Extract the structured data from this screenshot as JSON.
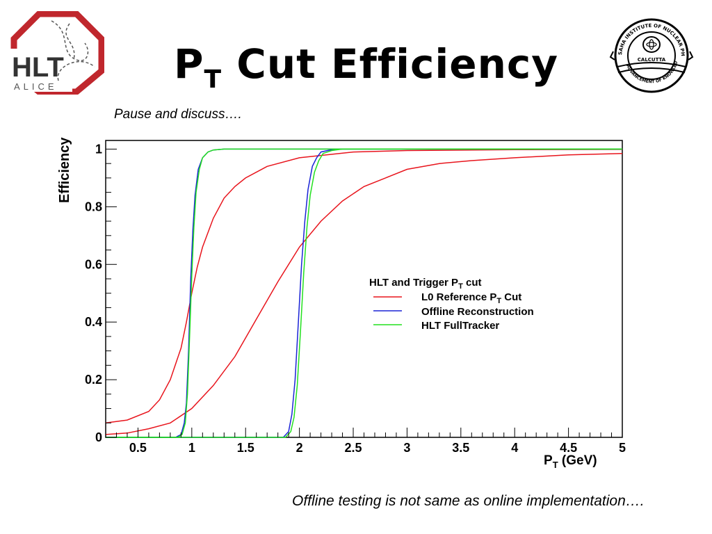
{
  "slide": {
    "title_main": "P",
    "title_sub": "T",
    "title_rest": " Cut Efficiency",
    "caption_top": "Pause and discuss….",
    "caption_bottom": "Offline testing is not same as online implementation…."
  },
  "logos": {
    "left": {
      "text_main": "HLT",
      "text_sub": "ALICE",
      "color": "#c0272d"
    },
    "right": {
      "ring_top": "SAHA INSTITUTE OF NUCLEAR PHYSICS",
      "center": "CALCUTTA",
      "ring_bottom": "ADVANCEMENT OF KNOWLEDGE"
    }
  },
  "chart_data": {
    "type": "line",
    "title": "",
    "xlabel_main": "P",
    "xlabel_sub": "T",
    "xlabel_rest": " (GeV)",
    "ylabel": "Efficiency",
    "xlim": [
      0.2,
      5.0
    ],
    "ylim": [
      0,
      1.03
    ],
    "xticks": [
      "0.5",
      "1",
      "1.5",
      "2",
      "2.5",
      "3",
      "3.5",
      "4",
      "4.5",
      "5"
    ],
    "xtick_values": [
      0.5,
      1,
      1.5,
      2,
      2.5,
      3,
      3.5,
      4,
      4.5,
      5
    ],
    "yticks": [
      "0",
      "0.2",
      "0.4",
      "0.6",
      "0.8",
      "1"
    ],
    "ytick_values": [
      0,
      0.2,
      0.4,
      0.6,
      0.8,
      1
    ],
    "grid": false,
    "legend": {
      "title_main": "HLT and Trigger P",
      "title_sub": "T",
      "title_rest": " cut",
      "placement": "center-right"
    },
    "series": [
      {
        "name_main": "L0 Reference P",
        "name_sub": "T",
        "name_rest": " Cut",
        "color": "#e8141c",
        "curves": [
          {
            "x": [
              0.2,
              0.4,
              0.6,
              0.7,
              0.8,
              0.9,
              0.95,
              1.0,
              1.05,
              1.1,
              1.2,
              1.3,
              1.4,
              1.5,
              1.7,
              2.0,
              2.5,
              3.0,
              4.0,
              5.0
            ],
            "y": [
              0.05,
              0.06,
              0.09,
              0.13,
              0.2,
              0.31,
              0.4,
              0.5,
              0.59,
              0.66,
              0.76,
              0.83,
              0.87,
              0.9,
              0.94,
              0.97,
              0.99,
              0.995,
              0.998,
              0.999
            ]
          },
          {
            "x": [
              0.2,
              0.4,
              0.6,
              0.8,
              1.0,
              1.2,
              1.4,
              1.6,
              1.8,
              2.0,
              2.2,
              2.4,
              2.6,
              2.8,
              3.0,
              3.3,
              3.6,
              4.0,
              4.5,
              5.0
            ],
            "y": [
              0.01,
              0.015,
              0.03,
              0.05,
              0.1,
              0.18,
              0.28,
              0.41,
              0.54,
              0.66,
              0.75,
              0.82,
              0.87,
              0.9,
              0.93,
              0.95,
              0.96,
              0.97,
              0.98,
              0.985
            ]
          }
        ]
      },
      {
        "name_main": "Offline Reconstruction",
        "name_sub": "",
        "name_rest": "",
        "color": "#1a24d6",
        "curves": [
          {
            "x": [
              0.2,
              0.85,
              0.9,
              0.93,
              0.95,
              0.97,
              0.99,
              1.01,
              1.03,
              1.06,
              1.1,
              1.15,
              1.2,
              1.3,
              1.5,
              5.0
            ],
            "y": [
              0,
              0,
              0.01,
              0.05,
              0.12,
              0.3,
              0.55,
              0.72,
              0.84,
              0.93,
              0.97,
              0.99,
              0.997,
              1,
              1,
              1
            ]
          },
          {
            "x": [
              0.2,
              1.85,
              1.9,
              1.93,
              1.96,
              1.99,
              2.02,
              2.05,
              2.08,
              2.12,
              2.16,
              2.2,
              2.3,
              2.4,
              2.5,
              5.0
            ],
            "y": [
              0,
              0,
              0.02,
              0.08,
              0.2,
              0.4,
              0.6,
              0.75,
              0.86,
              0.94,
              0.97,
              0.99,
              0.998,
              1,
              1,
              1
            ]
          }
        ]
      },
      {
        "name_main": "HLT FullTracker",
        "name_sub": "",
        "name_rest": "",
        "color": "#22e01e",
        "curves": [
          {
            "x": [
              0.2,
              0.87,
              0.91,
              0.94,
              0.96,
              0.98,
              1.0,
              1.02,
              1.04,
              1.07,
              1.1,
              1.15,
              1.2,
              1.3,
              1.5,
              5.0
            ],
            "y": [
              0,
              0,
              0.01,
              0.05,
              0.15,
              0.35,
              0.56,
              0.73,
              0.85,
              0.93,
              0.97,
              0.99,
              0.997,
              1,
              1,
              1
            ]
          },
          {
            "x": [
              0.2,
              1.87,
              1.92,
              1.95,
              1.98,
              2.01,
              2.04,
              2.07,
              2.1,
              2.14,
              2.18,
              2.22,
              2.3,
              2.4,
              2.5,
              5.0
            ],
            "y": [
              0,
              0,
              0.02,
              0.07,
              0.18,
              0.37,
              0.57,
              0.73,
              0.84,
              0.92,
              0.96,
              0.985,
              0.995,
              1,
              1,
              1
            ]
          }
        ]
      }
    ]
  }
}
